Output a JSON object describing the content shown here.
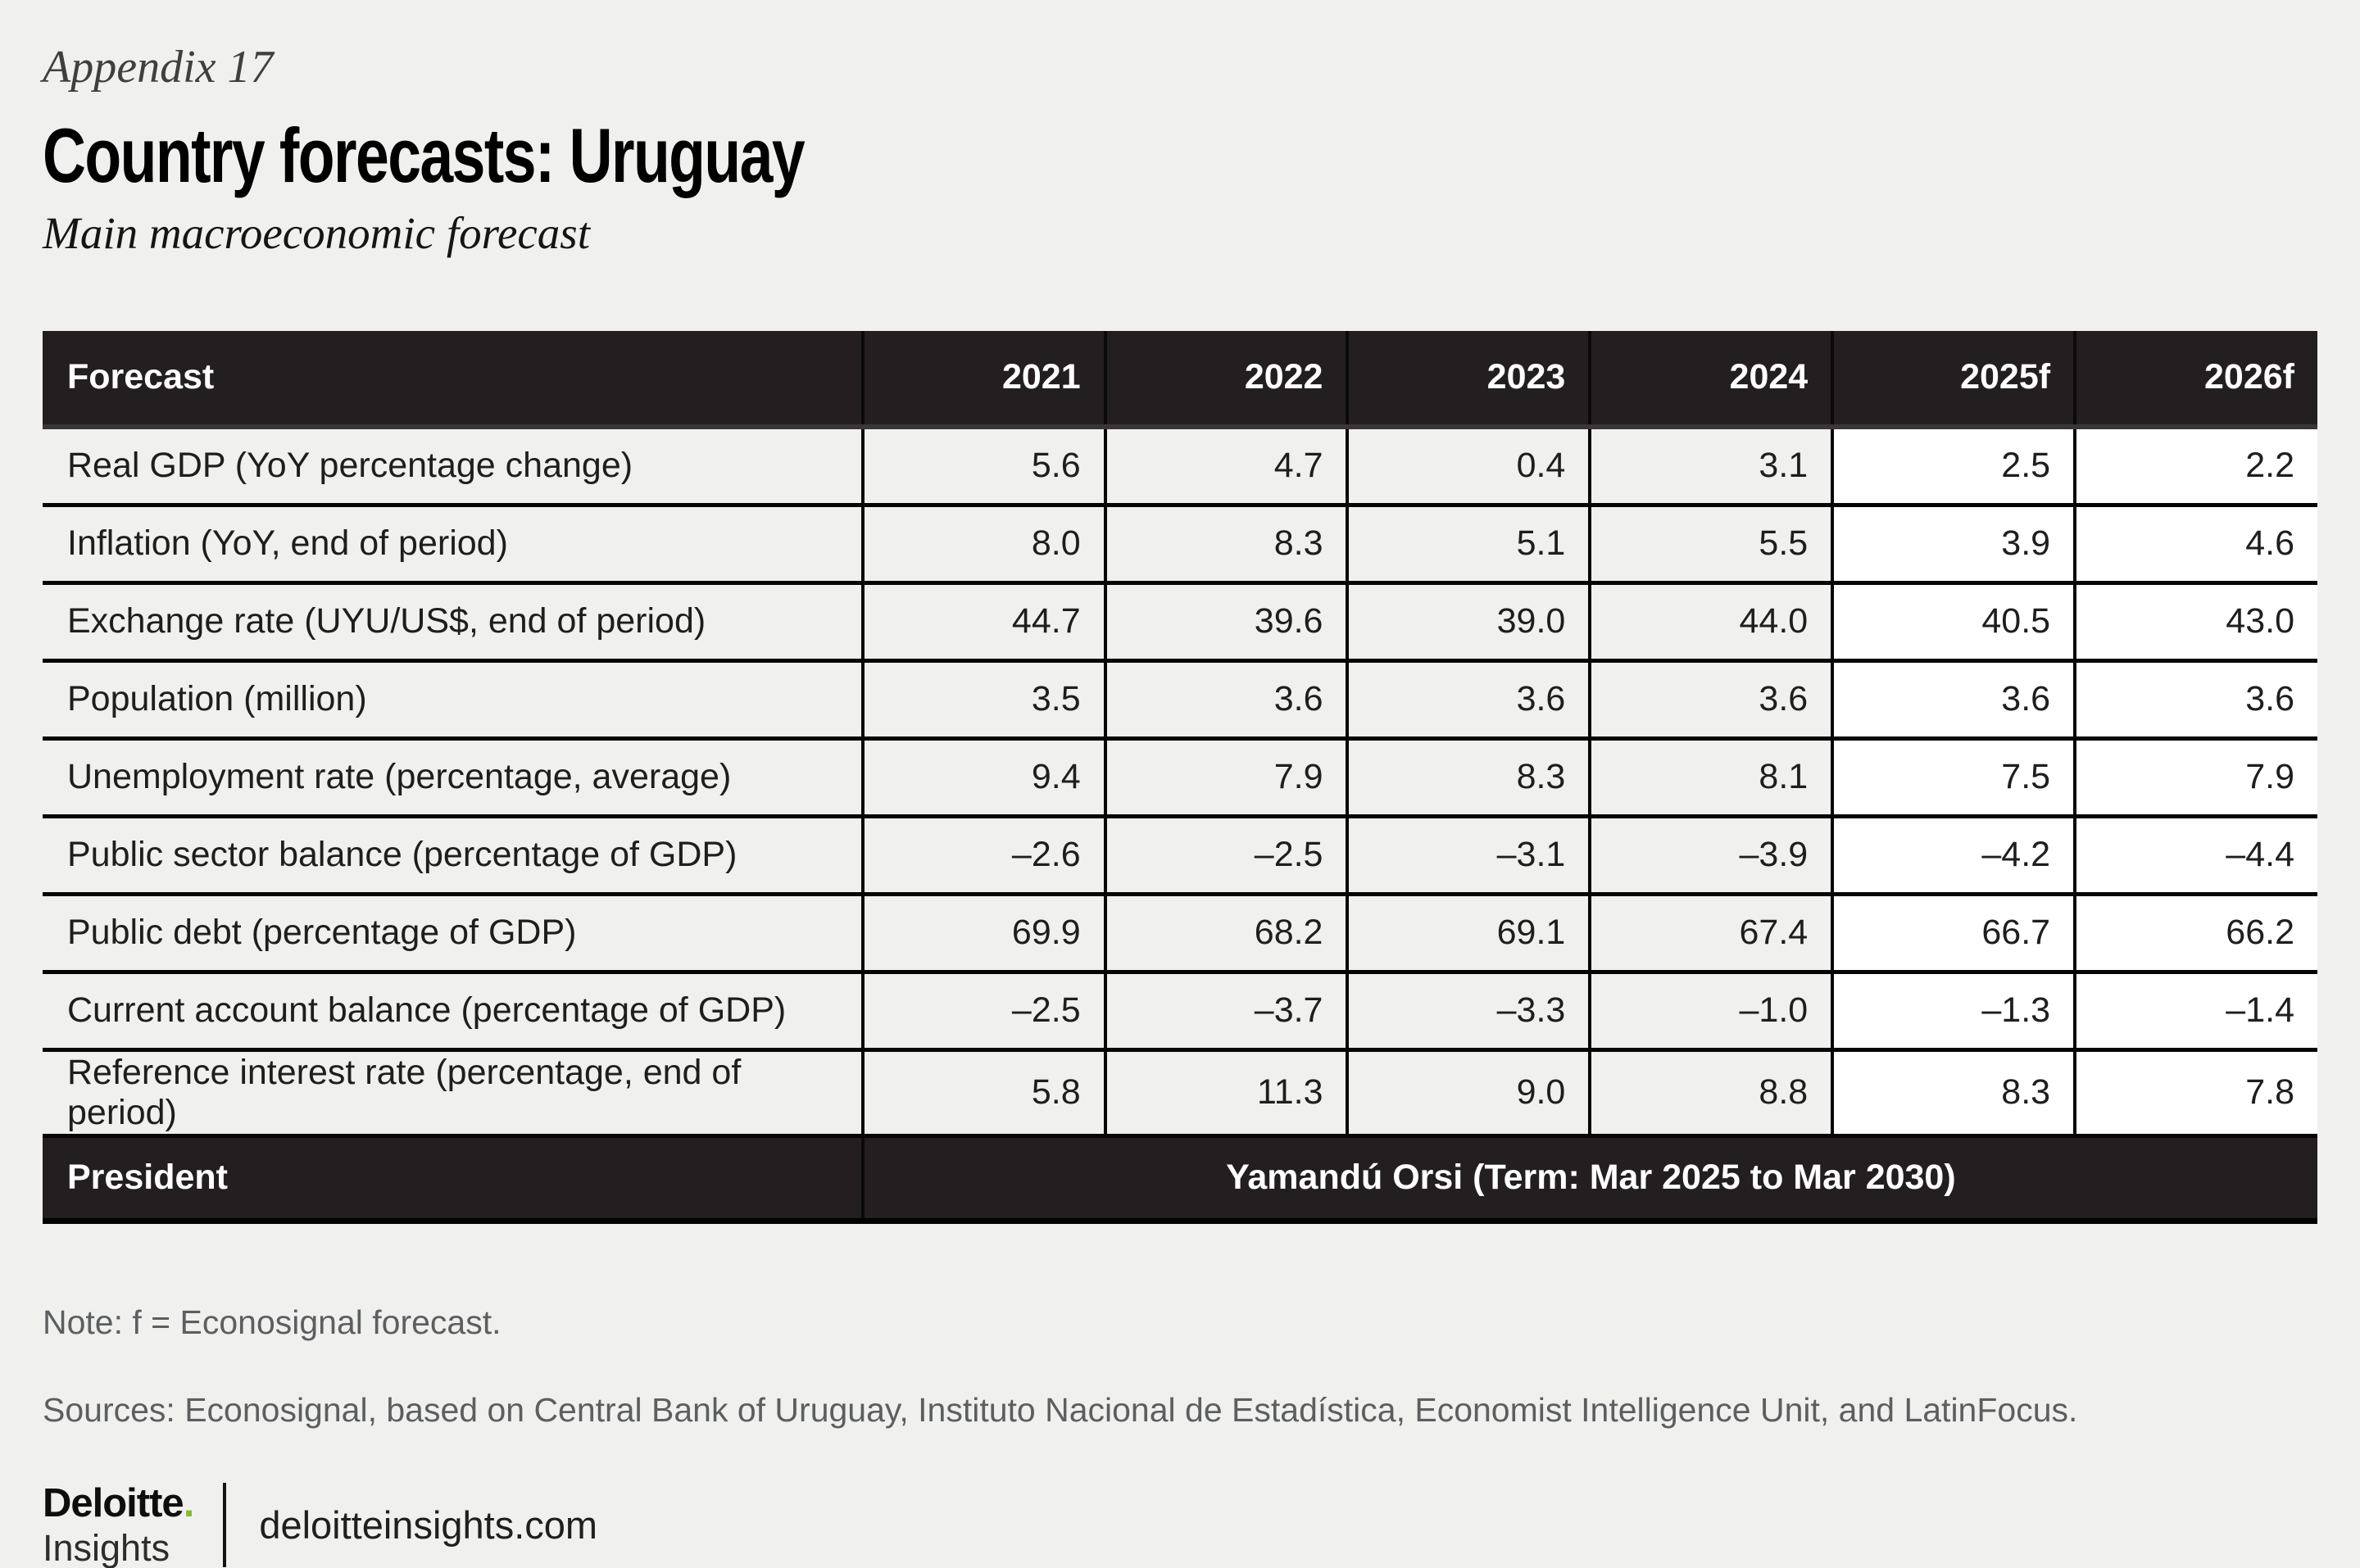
{
  "page": {
    "appendix_label": "Appendix 17",
    "title": "Country forecasts: Uruguay",
    "subtitle": "Main macroeconomic forecast",
    "note": "Note: f = Econosignal forecast.",
    "sources": "Sources: Econosignal, based on Central Bank of Uruguay, Instituto Nacional de Estadística, Economist Intelligence Unit, and LatinFocus."
  },
  "table": {
    "header": [
      "Forecast",
      "2021",
      "2022",
      "2023",
      "2024",
      "2025f",
      "2026f"
    ],
    "forecast_value_indices": [
      4,
      5
    ],
    "rows": [
      {
        "label": "Real GDP (YoY percentage change)",
        "values": [
          "5.6",
          "4.7",
          "0.4",
          "3.1",
          "2.5",
          "2.2"
        ]
      },
      {
        "label": "Inflation (YoY, end of period)",
        "values": [
          "8.0",
          "8.3",
          "5.1",
          "5.5",
          "3.9",
          "4.6"
        ]
      },
      {
        "label": "Exchange rate (UYU/US$, end of period)",
        "values": [
          "44.7",
          "39.6",
          "39.0",
          "44.0",
          "40.5",
          "43.0"
        ]
      },
      {
        "label": "Population (million)",
        "values": [
          "3.5",
          "3.6",
          "3.6",
          "3.6",
          "3.6",
          "3.6"
        ]
      },
      {
        "label": "Unemployment rate (percentage, average)",
        "values": [
          "9.4",
          "7.9",
          "8.3",
          "8.1",
          "7.5",
          "7.9"
        ]
      },
      {
        "label": "Public sector balance (percentage of GDP)",
        "values": [
          "–2.6",
          "–2.5",
          "–3.1",
          "–3.9",
          "–4.2",
          "–4.4"
        ]
      },
      {
        "label": "Public debt (percentage of GDP)",
        "values": [
          "69.9",
          "68.2",
          "69.1",
          "67.4",
          "66.7",
          "66.2"
        ]
      },
      {
        "label": "Current account balance (percentage of GDP)",
        "values": [
          "–2.5",
          "–3.7",
          "–3.3",
          "–1.0",
          "–1.3",
          "–1.4"
        ]
      },
      {
        "label": "Reference interest rate (percentage, end of period)",
        "values": [
          "5.8",
          "11.3",
          "9.0",
          "8.8",
          "8.3",
          "7.8"
        ]
      }
    ],
    "president_label": "President",
    "president_value": "Yamandú Orsi (Term: Mar 2025 to Mar 2030)"
  },
  "footer": {
    "brand_name": "Deloitte",
    "brand_dot": ".",
    "brand_sub": "Insights",
    "site": "deloitteinsights.com"
  },
  "colors": {
    "page_bg": "#f0f1ef",
    "header_bg": "#231f20",
    "forecast_col_bg": "#ffffff",
    "grid_line": "#060606",
    "muted_text": "#5d5e60",
    "accent_green": "#86bc25"
  }
}
